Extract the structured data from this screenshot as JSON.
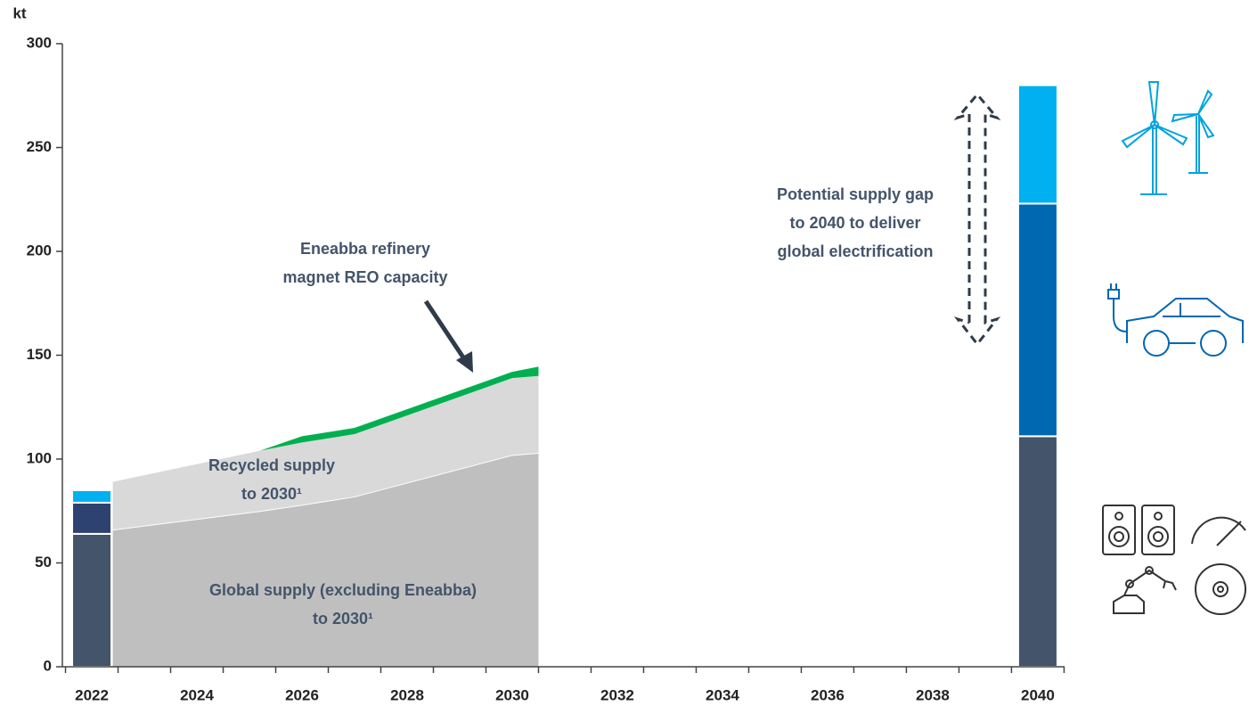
{
  "chart_data": {
    "type": "stacked-area-bar",
    "y_axis_label": "kt",
    "xlim": [
      2021.44,
      2040.51
    ],
    "xticks": [
      2022,
      2024,
      2026,
      2028,
      2030,
      2032,
      2034,
      2036,
      2038,
      2040
    ],
    "ylim": [
      0,
      300
    ],
    "yticks": [
      0,
      50,
      100,
      150,
      200,
      250,
      300
    ],
    "grid": false,
    "x": [
      2022.4,
      2025.2,
      2026,
      2027,
      2030,
      2030.5
    ],
    "series": [
      {
        "color": "#bfbfbf",
        "values": [
          66,
          75,
          78,
          82,
          102,
          103
        ]
      },
      {
        "color": "#d9d9d9",
        "values": [
          23,
          29,
          30,
          30,
          37,
          37
        ]
      },
      {
        "color": "#00b050",
        "values": [
          0,
          0,
          3,
          3,
          3,
          4.5
        ]
      }
    ],
    "bars": [
      {
        "x": 2022,
        "segments": [
          {
            "color": "#44546a",
            "value": 64
          },
          {
            "color": "#2e4272",
            "value": 15
          },
          {
            "color": "#00b0f0",
            "value": 6
          }
        ]
      },
      {
        "x": 2040,
        "segments": [
          {
            "color": "#44546a",
            "value": 111
          },
          {
            "color": "#0067b1",
            "value": 112
          },
          {
            "color": "#00b0f0",
            "value": 57
          }
        ]
      }
    ],
    "annotations": [
      {
        "lines": [
          "Eneabba refinery",
          "magnet REO capacity"
        ]
      },
      {
        "lines": [
          "Recycled supply",
          "to 2030¹"
        ]
      },
      {
        "lines": [
          "Global supply (excluding Eneabba)",
          "to 2030¹"
        ]
      },
      {
        "lines": [
          "Potential supply gap",
          "to 2040  to deliver",
          "global electrification"
        ]
      }
    ]
  }
}
